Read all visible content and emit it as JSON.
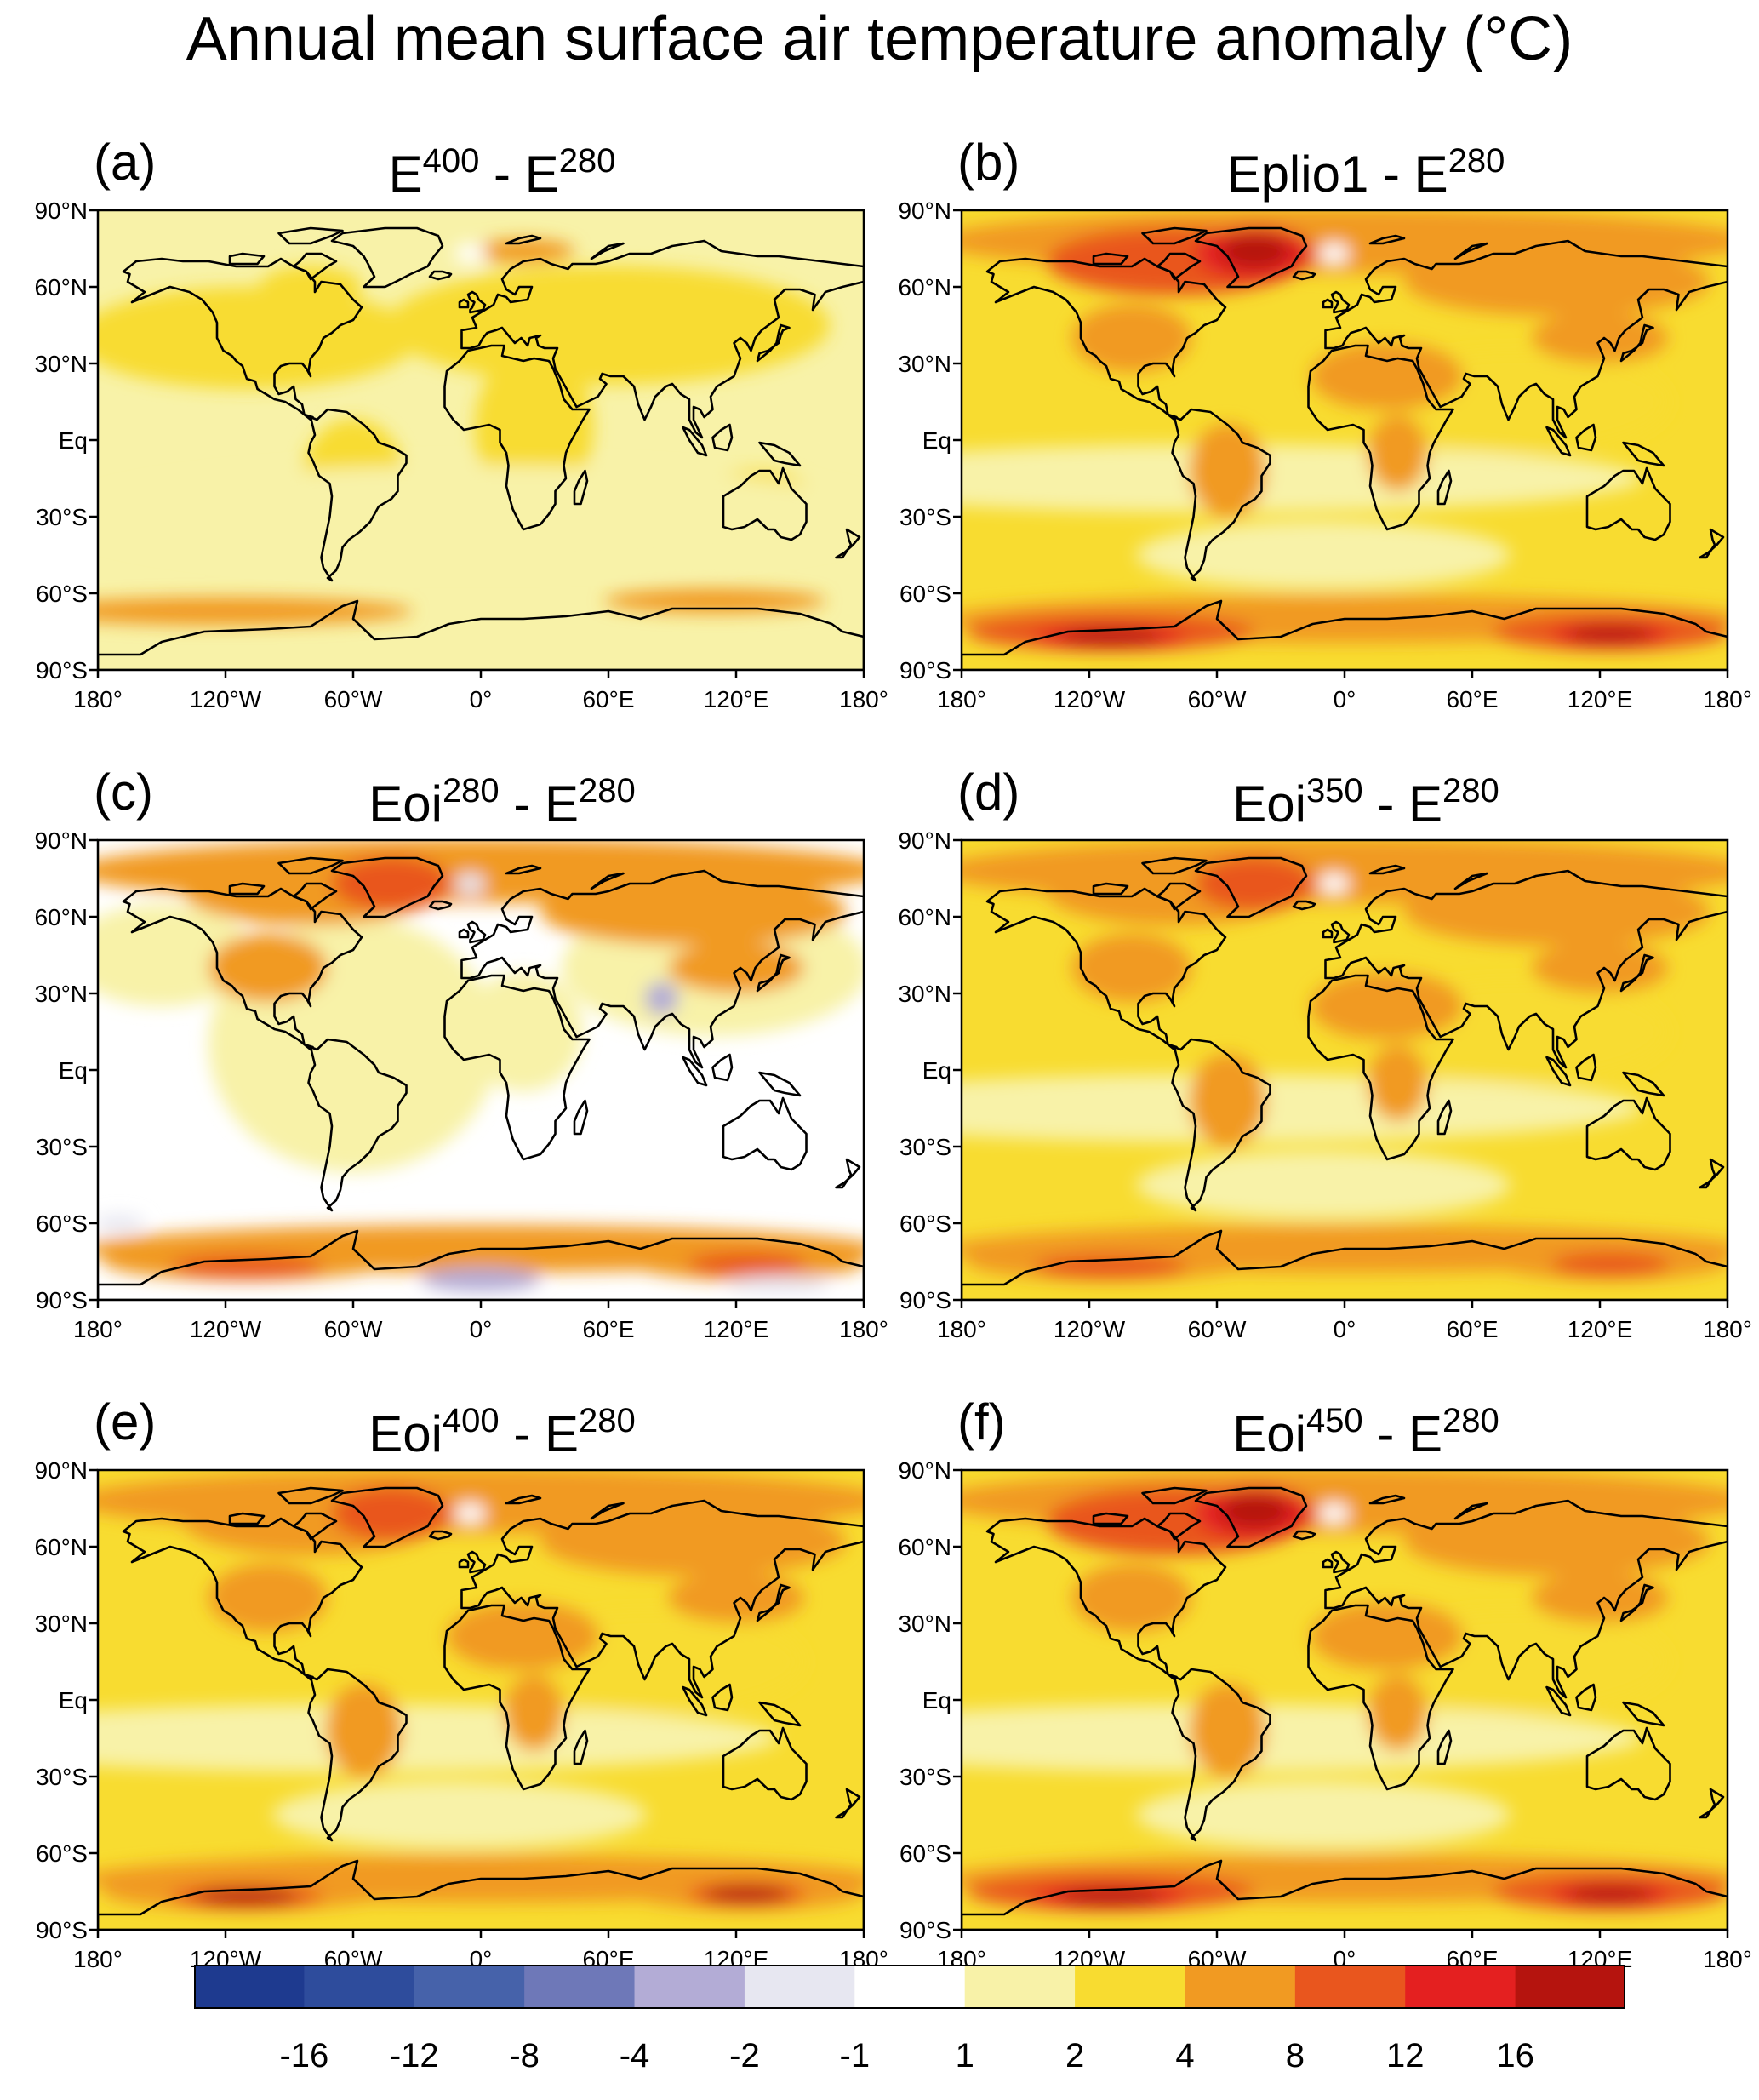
{
  "title": "Annual mean surface air temperature anomaly (°C)",
  "lat_labels": [
    "90°N",
    "60°N",
    "30°N",
    "Eq",
    "30°S",
    "60°S",
    "90°S"
  ],
  "lon_labels": [
    "180°",
    "120°W",
    "60°W",
    "0°",
    "60°E",
    "120°E",
    "180°"
  ],
  "panels": [
    {
      "letter": "(a)",
      "title_parts": [
        {
          "t": "E"
        },
        {
          "t": "400",
          "sup": true
        },
        {
          "t": " - E"
        },
        {
          "t": "280",
          "sup": true
        }
      ],
      "warmth": 0.35,
      "variant": 0
    },
    {
      "letter": "(b)",
      "title_parts": [
        {
          "t": "Eplio1 - E"
        },
        {
          "t": "280",
          "sup": true
        }
      ],
      "warmth": 0.85,
      "variant": 1
    },
    {
      "letter": "(c)",
      "title_parts": [
        {
          "t": "Eoi"
        },
        {
          "t": "280",
          "sup": true
        },
        {
          "t": " - E"
        },
        {
          "t": "280",
          "sup": true
        }
      ],
      "warmth": 0.15,
      "variant": 2
    },
    {
      "letter": "(d)",
      "title_parts": [
        {
          "t": "Eoi"
        },
        {
          "t": "350",
          "sup": true
        },
        {
          "t": " - E"
        },
        {
          "t": "280",
          "sup": true
        }
      ],
      "warmth": 0.45,
      "variant": 3
    },
    {
      "letter": "(e)",
      "title_parts": [
        {
          "t": "Eoi"
        },
        {
          "t": "400",
          "sup": true
        },
        {
          "t": " - E"
        },
        {
          "t": "280",
          "sup": true
        }
      ],
      "warmth": 0.6,
      "variant": 4
    },
    {
      "letter": "(f)",
      "title_parts": [
        {
          "t": "Eoi"
        },
        {
          "t": "450",
          "sup": true
        },
        {
          "t": " - E"
        },
        {
          "t": "280",
          "sup": true
        }
      ],
      "warmth": 0.8,
      "variant": 5
    }
  ],
  "colorbar": {
    "colors": [
      "#1e3a8f",
      "#2e4c9c",
      "#4662aa",
      "#6e78b8",
      "#b3acd6",
      "#e7e7f1",
      "#ffffff",
      "#f8f2a8",
      "#f8dc30",
      "#f19a22",
      "#e9561e",
      "#e42020",
      "#b5140e"
    ],
    "labels": [
      "-16",
      "-12",
      "-8",
      "-4",
      "-2",
      "-1",
      "1",
      "2",
      "4",
      "8",
      "12",
      "16"
    ]
  }
}
